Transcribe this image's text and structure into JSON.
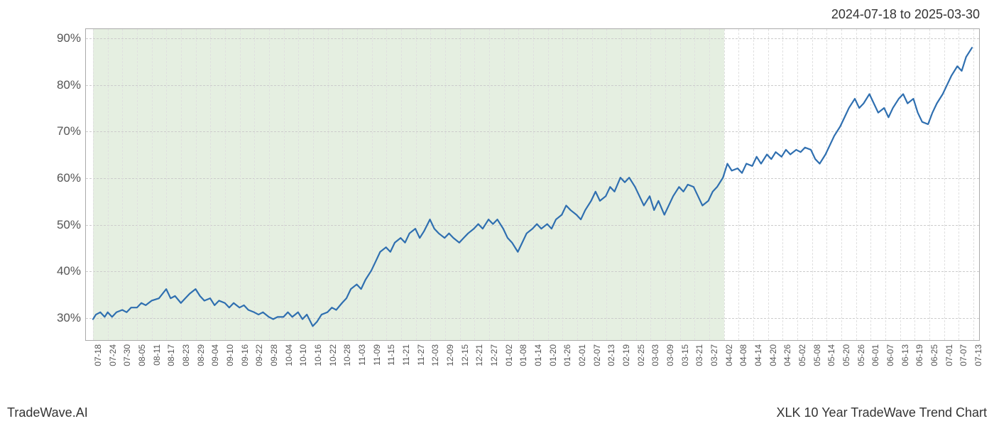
{
  "header": {
    "date_range": "2024-07-18 to 2025-03-30"
  },
  "footer": {
    "left": "TradeWave.AI",
    "right": "XLK 10 Year TradeWave Trend Chart"
  },
  "chart": {
    "type": "line",
    "background_color": "#ffffff",
    "grid_color_h": "#cccccc",
    "grid_color_v": "#e0e0e0",
    "axis_color": "#aaaaaa",
    "ylim": [
      25,
      92
    ],
    "yticks": [
      30,
      40,
      50,
      60,
      70,
      80,
      90
    ],
    "ytick_labels": [
      "30%",
      "40%",
      "50%",
      "60%",
      "70%",
      "80%",
      "90%"
    ],
    "y_tick_fontsize": 17,
    "x_tick_fontsize": 12,
    "highlight": {
      "start": "07-18",
      "end": "04-02",
      "color": "rgba(180,210,170,0.35)"
    },
    "series": {
      "color": "#2f6fb0",
      "line_width": 2.2
    },
    "x_labels": [
      "07-18",
      "07-24",
      "07-30",
      "08-05",
      "08-11",
      "08-17",
      "08-23",
      "08-29",
      "09-04",
      "09-10",
      "09-16",
      "09-22",
      "09-28",
      "10-04",
      "10-10",
      "10-16",
      "10-22",
      "10-28",
      "11-03",
      "11-09",
      "11-15",
      "11-21",
      "11-27",
      "12-03",
      "12-09",
      "12-15",
      "12-21",
      "12-27",
      "01-02",
      "01-08",
      "01-14",
      "01-20",
      "01-26",
      "02-01",
      "02-07",
      "02-13",
      "02-19",
      "02-25",
      "03-03",
      "03-09",
      "03-15",
      "03-21",
      "03-27",
      "04-02",
      "04-08",
      "04-14",
      "04-20",
      "04-26",
      "05-02",
      "05-08",
      "05-14",
      "05-20",
      "05-26",
      "06-01",
      "06-07",
      "06-13",
      "06-19",
      "06-25",
      "07-01",
      "07-07",
      "07-13"
    ],
    "x_domain_count": 61,
    "data": [
      {
        "i": 0,
        "y": 29.5
      },
      {
        "i": 0.2,
        "y": 30.5
      },
      {
        "i": 0.5,
        "y": 31
      },
      {
        "i": 0.8,
        "y": 30
      },
      {
        "i": 1,
        "y": 31
      },
      {
        "i": 1.3,
        "y": 30
      },
      {
        "i": 1.6,
        "y": 31
      },
      {
        "i": 2,
        "y": 31.5
      },
      {
        "i": 2.3,
        "y": 31
      },
      {
        "i": 2.6,
        "y": 32
      },
      {
        "i": 3,
        "y": 32
      },
      {
        "i": 3.3,
        "y": 33
      },
      {
        "i": 3.6,
        "y": 32.5
      },
      {
        "i": 4,
        "y": 33.5
      },
      {
        "i": 4.5,
        "y": 34
      },
      {
        "i": 5,
        "y": 36
      },
      {
        "i": 5.3,
        "y": 34
      },
      {
        "i": 5.6,
        "y": 34.5
      },
      {
        "i": 6,
        "y": 33
      },
      {
        "i": 6.3,
        "y": 34
      },
      {
        "i": 6.6,
        "y": 35
      },
      {
        "i": 7,
        "y": 36
      },
      {
        "i": 7.3,
        "y": 34.5
      },
      {
        "i": 7.6,
        "y": 33.5
      },
      {
        "i": 8,
        "y": 34
      },
      {
        "i": 8.3,
        "y": 32.5
      },
      {
        "i": 8.6,
        "y": 33.5
      },
      {
        "i": 9,
        "y": 33
      },
      {
        "i": 9.3,
        "y": 32
      },
      {
        "i": 9.6,
        "y": 33
      },
      {
        "i": 10,
        "y": 32
      },
      {
        "i": 10.3,
        "y": 32.5
      },
      {
        "i": 10.6,
        "y": 31.5
      },
      {
        "i": 11,
        "y": 31
      },
      {
        "i": 11.3,
        "y": 30.5
      },
      {
        "i": 11.6,
        "y": 31
      },
      {
        "i": 12,
        "y": 30
      },
      {
        "i": 12.3,
        "y": 29.5
      },
      {
        "i": 12.6,
        "y": 30
      },
      {
        "i": 13,
        "y": 30
      },
      {
        "i": 13.3,
        "y": 31
      },
      {
        "i": 13.6,
        "y": 30
      },
      {
        "i": 14,
        "y": 31
      },
      {
        "i": 14.3,
        "y": 29.5
      },
      {
        "i": 14.6,
        "y": 30.5
      },
      {
        "i": 15,
        "y": 28
      },
      {
        "i": 15.3,
        "y": 29
      },
      {
        "i": 15.6,
        "y": 30.5
      },
      {
        "i": 16,
        "y": 31
      },
      {
        "i": 16.3,
        "y": 32
      },
      {
        "i": 16.6,
        "y": 31.5
      },
      {
        "i": 17,
        "y": 33
      },
      {
        "i": 17.3,
        "y": 34
      },
      {
        "i": 17.6,
        "y": 36
      },
      {
        "i": 18,
        "y": 37
      },
      {
        "i": 18.3,
        "y": 36
      },
      {
        "i": 18.6,
        "y": 38
      },
      {
        "i": 19,
        "y": 40
      },
      {
        "i": 19.3,
        "y": 42
      },
      {
        "i": 19.6,
        "y": 44
      },
      {
        "i": 20,
        "y": 45
      },
      {
        "i": 20.3,
        "y": 44
      },
      {
        "i": 20.6,
        "y": 46
      },
      {
        "i": 21,
        "y": 47
      },
      {
        "i": 21.3,
        "y": 46
      },
      {
        "i": 21.6,
        "y": 48
      },
      {
        "i": 22,
        "y": 49
      },
      {
        "i": 22.3,
        "y": 47
      },
      {
        "i": 22.6,
        "y": 48.5
      },
      {
        "i": 23,
        "y": 51
      },
      {
        "i": 23.3,
        "y": 49
      },
      {
        "i": 23.6,
        "y": 48
      },
      {
        "i": 24,
        "y": 47
      },
      {
        "i": 24.3,
        "y": 48
      },
      {
        "i": 24.6,
        "y": 47
      },
      {
        "i": 25,
        "y": 46
      },
      {
        "i": 25.3,
        "y": 47
      },
      {
        "i": 25.6,
        "y": 48
      },
      {
        "i": 26,
        "y": 49
      },
      {
        "i": 26.3,
        "y": 50
      },
      {
        "i": 26.6,
        "y": 49
      },
      {
        "i": 27,
        "y": 51
      },
      {
        "i": 27.3,
        "y": 50
      },
      {
        "i": 27.6,
        "y": 51
      },
      {
        "i": 28,
        "y": 49
      },
      {
        "i": 28.3,
        "y": 47
      },
      {
        "i": 28.6,
        "y": 46
      },
      {
        "i": 29,
        "y": 44
      },
      {
        "i": 29.3,
        "y": 46
      },
      {
        "i": 29.6,
        "y": 48
      },
      {
        "i": 30,
        "y": 49
      },
      {
        "i": 30.3,
        "y": 50
      },
      {
        "i": 30.6,
        "y": 49
      },
      {
        "i": 31,
        "y": 50
      },
      {
        "i": 31.3,
        "y": 49
      },
      {
        "i": 31.6,
        "y": 51
      },
      {
        "i": 32,
        "y": 52
      },
      {
        "i": 32.3,
        "y": 54
      },
      {
        "i": 32.6,
        "y": 53
      },
      {
        "i": 33,
        "y": 52
      },
      {
        "i": 33.3,
        "y": 51
      },
      {
        "i": 33.6,
        "y": 53
      },
      {
        "i": 34,
        "y": 55
      },
      {
        "i": 34.3,
        "y": 57
      },
      {
        "i": 34.6,
        "y": 55
      },
      {
        "i": 35,
        "y": 56
      },
      {
        "i": 35.3,
        "y": 58
      },
      {
        "i": 35.6,
        "y": 57
      },
      {
        "i": 36,
        "y": 60
      },
      {
        "i": 36.3,
        "y": 59
      },
      {
        "i": 36.6,
        "y": 60
      },
      {
        "i": 37,
        "y": 58
      },
      {
        "i": 37.3,
        "y": 56
      },
      {
        "i": 37.6,
        "y": 54
      },
      {
        "i": 38,
        "y": 56
      },
      {
        "i": 38.3,
        "y": 53
      },
      {
        "i": 38.6,
        "y": 55
      },
      {
        "i": 39,
        "y": 52
      },
      {
        "i": 39.3,
        "y": 54
      },
      {
        "i": 39.6,
        "y": 56
      },
      {
        "i": 40,
        "y": 58
      },
      {
        "i": 40.3,
        "y": 57
      },
      {
        "i": 40.6,
        "y": 58.5
      },
      {
        "i": 41,
        "y": 58
      },
      {
        "i": 41.3,
        "y": 56
      },
      {
        "i": 41.6,
        "y": 54
      },
      {
        "i": 42,
        "y": 55
      },
      {
        "i": 42.3,
        "y": 57
      },
      {
        "i": 42.6,
        "y": 58
      },
      {
        "i": 43,
        "y": 60
      },
      {
        "i": 43.3,
        "y": 63
      },
      {
        "i": 43.6,
        "y": 61.5
      },
      {
        "i": 44,
        "y": 62
      },
      {
        "i": 44.3,
        "y": 61
      },
      {
        "i": 44.6,
        "y": 63
      },
      {
        "i": 45,
        "y": 62.5
      },
      {
        "i": 45.3,
        "y": 64.5
      },
      {
        "i": 45.6,
        "y": 63
      },
      {
        "i": 46,
        "y": 65
      },
      {
        "i": 46.3,
        "y": 64
      },
      {
        "i": 46.6,
        "y": 65.5
      },
      {
        "i": 47,
        "y": 64.5
      },
      {
        "i": 47.3,
        "y": 66
      },
      {
        "i": 47.6,
        "y": 65
      },
      {
        "i": 48,
        "y": 66
      },
      {
        "i": 48.3,
        "y": 65.5
      },
      {
        "i": 48.6,
        "y": 66.5
      },
      {
        "i": 49,
        "y": 66
      },
      {
        "i": 49.3,
        "y": 64
      },
      {
        "i": 49.6,
        "y": 63
      },
      {
        "i": 50,
        "y": 65
      },
      {
        "i": 50.3,
        "y": 67
      },
      {
        "i": 50.6,
        "y": 69
      },
      {
        "i": 51,
        "y": 71
      },
      {
        "i": 51.3,
        "y": 73
      },
      {
        "i": 51.6,
        "y": 75
      },
      {
        "i": 52,
        "y": 77
      },
      {
        "i": 52.3,
        "y": 75
      },
      {
        "i": 52.6,
        "y": 76
      },
      {
        "i": 53,
        "y": 78
      },
      {
        "i": 53.3,
        "y": 76
      },
      {
        "i": 53.6,
        "y": 74
      },
      {
        "i": 54,
        "y": 75
      },
      {
        "i": 54.3,
        "y": 73
      },
      {
        "i": 54.6,
        "y": 75
      },
      {
        "i": 55,
        "y": 77
      },
      {
        "i": 55.3,
        "y": 78
      },
      {
        "i": 55.6,
        "y": 76
      },
      {
        "i": 56,
        "y": 77
      },
      {
        "i": 56.3,
        "y": 74
      },
      {
        "i": 56.6,
        "y": 72
      },
      {
        "i": 57,
        "y": 71.5
      },
      {
        "i": 57.3,
        "y": 74
      },
      {
        "i": 57.6,
        "y": 76
      },
      {
        "i": 58,
        "y": 78
      },
      {
        "i": 58.3,
        "y": 80
      },
      {
        "i": 58.6,
        "y": 82
      },
      {
        "i": 59,
        "y": 84
      },
      {
        "i": 59.3,
        "y": 83
      },
      {
        "i": 59.6,
        "y": 86
      },
      {
        "i": 60,
        "y": 88
      }
    ]
  }
}
